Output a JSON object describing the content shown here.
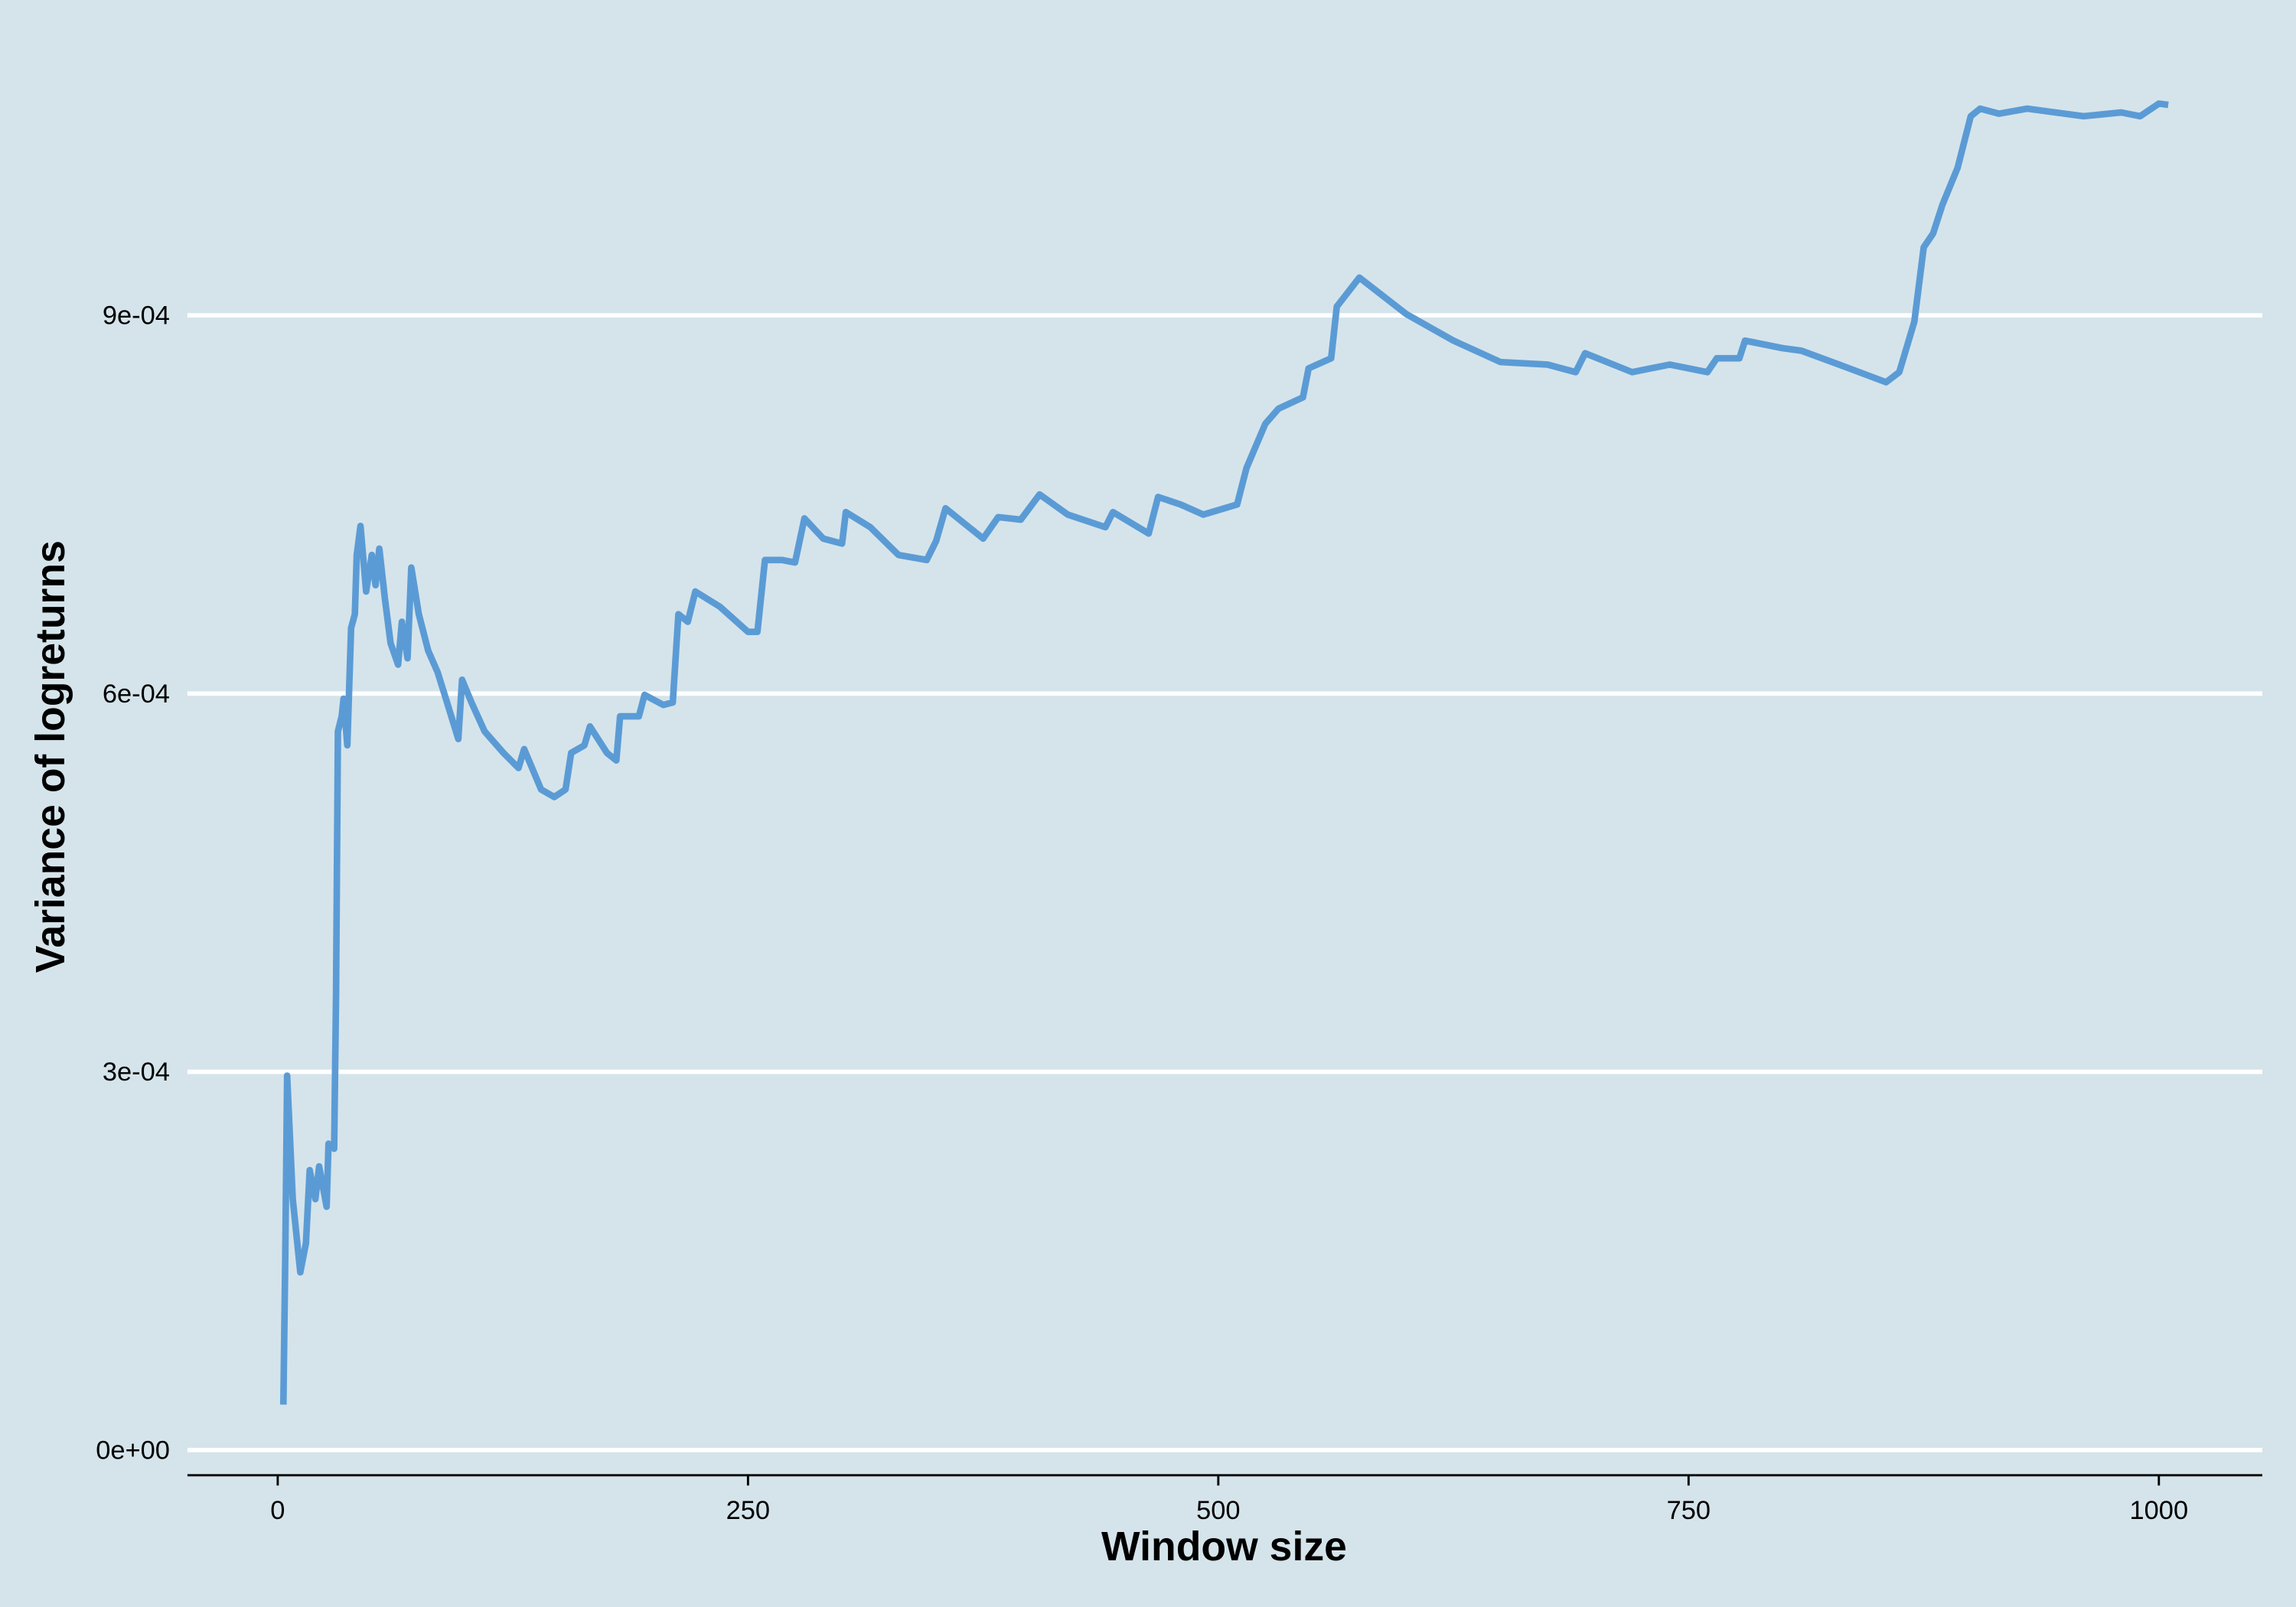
{
  "chart_data": {
    "type": "line",
    "x_label": "Window size",
    "y_label": "Variance of logreturns",
    "x": [
      3,
      4,
      5,
      8,
      12,
      15,
      17,
      20,
      22,
      26,
      27,
      30,
      31,
      32,
      34,
      35,
      37,
      39,
      41,
      42,
      44,
      47,
      50,
      52,
      54,
      57,
      60,
      64,
      66,
      69,
      71,
      75,
      80,
      85,
      90,
      96,
      98,
      103,
      110,
      120,
      128,
      131,
      140,
      147,
      153,
      156,
      163,
      166,
      175,
      180,
      182,
      192,
      195,
      205,
      210,
      213,
      218,
      222,
      235,
      250,
      255,
      259,
      268,
      275,
      280,
      290,
      300,
      302,
      315,
      330,
      345,
      350,
      355,
      375,
      383,
      395,
      405,
      420,
      440,
      444,
      463,
      468,
      480,
      492,
      510,
      515,
      525,
      532,
      545,
      548,
      560,
      563,
      575,
      600,
      625,
      650,
      675,
      690,
      695,
      720,
      740,
      760,
      765,
      777,
      780,
      800,
      810,
      830,
      855,
      862,
      870,
      875,
      880,
      885,
      893,
      900,
      905,
      915,
      930,
      960,
      980,
      990,
      1000,
      1005
    ],
    "series": [
      {
        "name": "variance",
        "color": "#5b9bd5",
        "values": [
          3.6e-05,
          0.000152,
          0.000297,
          0.000199,
          0.000141,
          0.000164,
          0.000222,
          0.000199,
          0.000225,
          0.000193,
          0.000243,
          0.000239,
          0.000361,
          0.00057,
          0.000582,
          0.000596,
          0.000559,
          0.000652,
          0.000663,
          0.00071,
          0.000733,
          0.000681,
          0.00071,
          0.000686,
          0.000715,
          0.000675,
          0.00064,
          0.000623,
          0.000657,
          0.000628,
          0.0007,
          0.000663,
          0.000634,
          0.000617,
          0.000593,
          0.000564,
          0.000611,
          0.000593,
          0.00057,
          0.000553,
          0.000541,
          0.000556,
          0.000524,
          0.000518,
          0.000524,
          0.000553,
          0.000559,
          0.000574,
          0.000553,
          0.000547,
          0.000582,
          0.000582,
          0.000599,
          0.000591,
          0.000593,
          0.000663,
          0.000657,
          0.000681,
          0.000669,
          0.000649,
          0.000649,
          0.000706,
          0.000706,
          0.000704,
          0.000739,
          0.000723,
          0.000719,
          0.000744,
          0.000732,
          0.00071,
          0.000706,
          0.000721,
          0.000747,
          0.000723,
          0.00074,
          0.000738,
          0.000758,
          0.000742,
          0.000732,
          0.000744,
          0.000727,
          0.000756,
          0.00075,
          0.000742,
          0.00075,
          0.000779,
          0.000814,
          0.000826,
          0.000835,
          0.000858,
          0.000866,
          0.000907,
          0.00093,
          0.000901,
          0.00088,
          0.000863,
          0.000861,
          0.000855,
          0.00087,
          0.000855,
          0.000861,
          0.000855,
          0.000866,
          0.000866,
          0.00088,
          0.000874,
          0.000872,
          0.000861,
          0.000847,
          0.000855,
          0.000895,
          0.000954,
          0.000965,
          0.000988,
          0.001017,
          0.001058,
          0.001064,
          0.00106,
          0.001064,
          0.001058,
          0.001061,
          0.001058,
          0.001068,
          0.001067
        ]
      }
    ],
    "xlim": [
      -48,
      1055
    ],
    "ylim": [
      -2e-05,
      0.00112
    ],
    "xticks": [
      0,
      250,
      500,
      750,
      1000
    ],
    "yticks": [
      {
        "value": 0,
        "label": "0e+00"
      },
      {
        "value": 0.0003,
        "label": "3e-04"
      },
      {
        "value": 0.0006,
        "label": "6e-04"
      },
      {
        "value": 0.0009,
        "label": "9e-04"
      }
    ],
    "grid": true
  }
}
